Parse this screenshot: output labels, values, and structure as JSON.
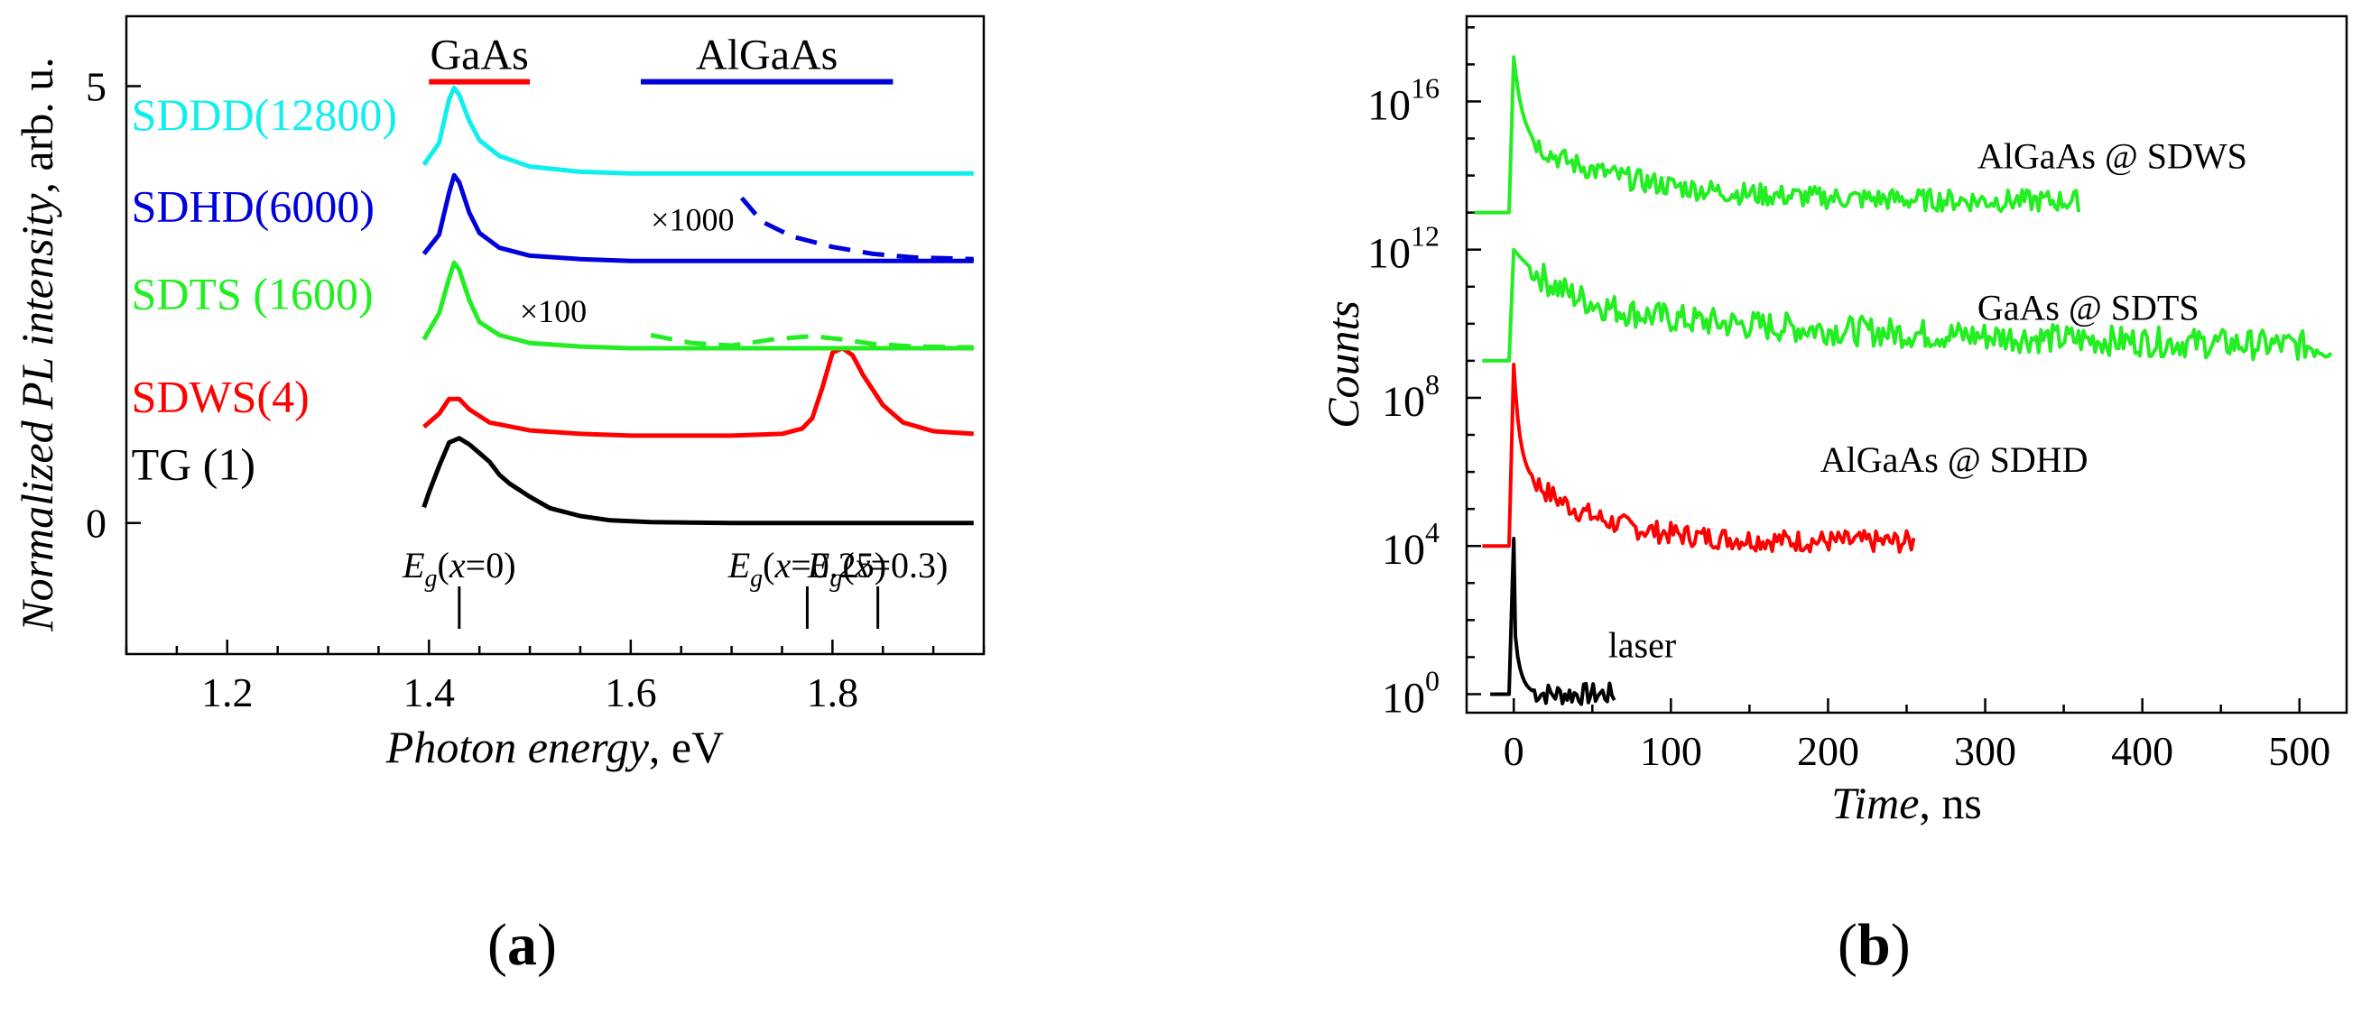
{
  "panels": {
    "a": {
      "label_open": "(",
      "label_letter": "a",
      "label_close": ")"
    },
    "b": {
      "label_open": "(",
      "label_letter": "b",
      "label_close": ")"
    }
  },
  "chart_data": [
    {
      "id": "a",
      "type": "line",
      "xlabel_italic": "Photon energy",
      "xlabel_unit": ", eV",
      "ylabel_italic": "Normalized PL intensity",
      "ylabel_unit": ", arb. u.",
      "xlim": [
        1.1,
        1.95
      ],
      "ylim": [
        -1.5,
        5.8
      ],
      "xticks": [
        1.2,
        1.4,
        1.6,
        1.8
      ],
      "xtick_labels": [
        "1.2",
        "1.4",
        "1.6",
        "1.8"
      ],
      "yticks": [
        0,
        5
      ],
      "ytick_labels": [
        "0",
        "5"
      ],
      "colors": {
        "black": "#000000",
        "red": "#ff0000",
        "green": "#22ee22",
        "blue": "#0000dd",
        "cyan": "#11eeee"
      },
      "series": [
        {
          "name": "TG (1)",
          "color": "#000000",
          "offset": 0,
          "x": [
            1.395,
            1.4,
            1.41,
            1.42,
            1.43,
            1.44,
            1.45,
            1.46,
            1.47,
            1.48,
            1.5,
            1.52,
            1.55,
            1.58,
            1.62,
            1.7,
            1.8,
            1.94
          ],
          "y": [
            0.18,
            0.35,
            0.65,
            0.92,
            0.97,
            0.9,
            0.8,
            0.7,
            0.55,
            0.45,
            0.3,
            0.17,
            0.08,
            0.03,
            0.01,
            0.0,
            0.0,
            0.0
          ]
        },
        {
          "name": "SDWS(4)",
          "color": "#ff0000",
          "offset": 1,
          "x": [
            1.395,
            1.41,
            1.42,
            1.43,
            1.44,
            1.46,
            1.5,
            1.55,
            1.6,
            1.7,
            1.75,
            1.77,
            1.78,
            1.79,
            1.8,
            1.81,
            1.82,
            1.83,
            1.85,
            1.87,
            1.9,
            1.94
          ],
          "y": [
            0.1,
            0.25,
            0.42,
            0.42,
            0.3,
            0.15,
            0.06,
            0.02,
            0.0,
            0.0,
            0.02,
            0.08,
            0.2,
            0.55,
            0.95,
            1.0,
            0.92,
            0.7,
            0.35,
            0.15,
            0.05,
            0.02
          ]
        },
        {
          "name": "SDTS (1600)",
          "color": "#22ee22",
          "offset": 2,
          "x": [
            1.395,
            1.41,
            1.42,
            1.425,
            1.43,
            1.44,
            1.45,
            1.47,
            1.5,
            1.55,
            1.6,
            1.7,
            1.8,
            1.94
          ],
          "y": [
            0.1,
            0.4,
            0.8,
            0.98,
            0.9,
            0.55,
            0.3,
            0.15,
            0.06,
            0.02,
            0.0,
            0.0,
            0.0,
            0.0
          ]
        },
        {
          "name": "SDHD(6000)",
          "color": "#0000dd",
          "offset": 3,
          "x": [
            1.395,
            1.41,
            1.42,
            1.425,
            1.43,
            1.44,
            1.45,
            1.47,
            1.5,
            1.55,
            1.6,
            1.7,
            1.8,
            1.94
          ],
          "y": [
            0.08,
            0.3,
            0.78,
            0.98,
            0.9,
            0.55,
            0.32,
            0.15,
            0.06,
            0.02,
            0.0,
            0.0,
            0.0,
            0.0
          ]
        },
        {
          "name": "SDDD(12800)",
          "color": "#11eeee",
          "offset": 4,
          "x": [
            1.395,
            1.41,
            1.42,
            1.425,
            1.43,
            1.44,
            1.45,
            1.47,
            1.5,
            1.55,
            1.6,
            1.7,
            1.8,
            1.94
          ],
          "y": [
            0.1,
            0.35,
            0.85,
            0.98,
            0.9,
            0.6,
            0.38,
            0.2,
            0.08,
            0.02,
            0.0,
            0.0,
            0.0,
            0.0
          ]
        }
      ],
      "dashed_series": [
        {
          "name": "SDTS x100",
          "color": "#22ee22",
          "offset": 2,
          "x": [
            1.62,
            1.66,
            1.7,
            1.74,
            1.78,
            1.81,
            1.84,
            1.88,
            1.94
          ],
          "y": [
            0.15,
            0.06,
            0.03,
            0.1,
            0.14,
            0.1,
            0.05,
            0.02,
            0.01
          ]
        },
        {
          "name": "SDHD x1000",
          "color": "#0000dd",
          "offset": 3,
          "x": [
            1.71,
            1.73,
            1.76,
            1.8,
            1.84,
            1.88,
            1.94
          ],
          "y": [
            0.72,
            0.45,
            0.28,
            0.16,
            0.08,
            0.04,
            0.02
          ]
        }
      ],
      "series_labels": [
        {
          "text": "TG (1)",
          "color": "#000000",
          "x": 1.105,
          "y": 0.5
        },
        {
          "text": "SDWS(4)",
          "color": "#ff0000",
          "x": 1.105,
          "y": 1.27
        },
        {
          "text": "SDTS (1600)",
          "color": "#22ee22",
          "x": 1.105,
          "y": 2.45
        },
        {
          "text": "SDHD(6000)",
          "color": "#0000dd",
          "x": 1.105,
          "y": 3.45
        },
        {
          "text": "SDDD(12800)",
          "color": "#11eeee",
          "x": 1.105,
          "y": 4.5
        }
      ],
      "multiplier_labels": [
        {
          "text": "×100",
          "x": 1.49,
          "y": 2.3
        },
        {
          "text": "×1000",
          "x": 1.62,
          "y": 3.35
        }
      ],
      "top_bars": [
        {
          "label": "GaAs",
          "color": "#ff0000",
          "x0": 1.4,
          "x1": 1.5,
          "y": 5.05
        },
        {
          "label": "AlGaAs",
          "color": "#0000dd",
          "x0": 1.61,
          "x1": 1.86,
          "y": 5.05
        }
      ],
      "energy_markers": [
        {
          "sub": "g",
          "arg": "x",
          "value": "=0",
          "x": 1.43
        },
        {
          "sub": "g",
          "arg": "x",
          "value": "=0.25",
          "x": 1.775
        },
        {
          "sub": "g",
          "arg": "x",
          "value": "=0.3",
          "x": 1.845
        }
      ],
      "energy_symbol": "E"
    },
    {
      "id": "b",
      "type": "line",
      "xlabel_italic": "Time",
      "xlabel_unit": ", ns",
      "ylabel_italic": "Counts",
      "y_scale": "log",
      "xlim": [
        -30,
        530
      ],
      "ylim_log10": [
        -0.5,
        18.3
      ],
      "xticks": [
        0,
        100,
        200,
        300,
        400,
        500
      ],
      "xtick_labels": [
        "0",
        "100",
        "200",
        "300",
        "400",
        "500"
      ],
      "yticks_log10": [
        0,
        4,
        8,
        12,
        16
      ],
      "ytick_base": "10",
      "ytick_exponents": [
        "0",
        "4",
        "8",
        "12",
        "16"
      ],
      "series": [
        {
          "name": "laser",
          "color": "#000000",
          "baseline": 0,
          "peak": 4.2,
          "tau": 4,
          "tail": 0,
          "x_end": 65,
          "x_start": -15
        },
        {
          "name": "AlGaAs @ SDHD",
          "color": "#ff0000",
          "baseline": 4,
          "peak": 8.9,
          "tau": 45,
          "tail": 4.1,
          "x_end": 255,
          "x_start": -20
        },
        {
          "name": "GaAs @ SDTS",
          "color": "#22ee22",
          "baseline": 9,
          "peak": 12.0,
          "tau": 420,
          "tail": 9.0,
          "x_end": 520,
          "x_start": -20
        },
        {
          "name": "AlGaAs @ SDWS",
          "color": "#22ee22",
          "baseline": 13,
          "peak": 17.2,
          "tau": 70,
          "tail": 13.3,
          "x_end": 360,
          "x_start": -25
        }
      ],
      "annotations": [
        {
          "text": "AlGaAs @ SDWS",
          "x": 295,
          "y_log10": 14.2
        },
        {
          "text": "GaAs @ SDTS",
          "x": 295,
          "y_log10": 10.1
        },
        {
          "text": "AlGaAs @ SDHD",
          "x": 195,
          "y_log10": 6.0
        },
        {
          "text": "laser",
          "x": 60,
          "y_log10": 1.0
        }
      ],
      "fit_color": "#0000cc"
    }
  ]
}
